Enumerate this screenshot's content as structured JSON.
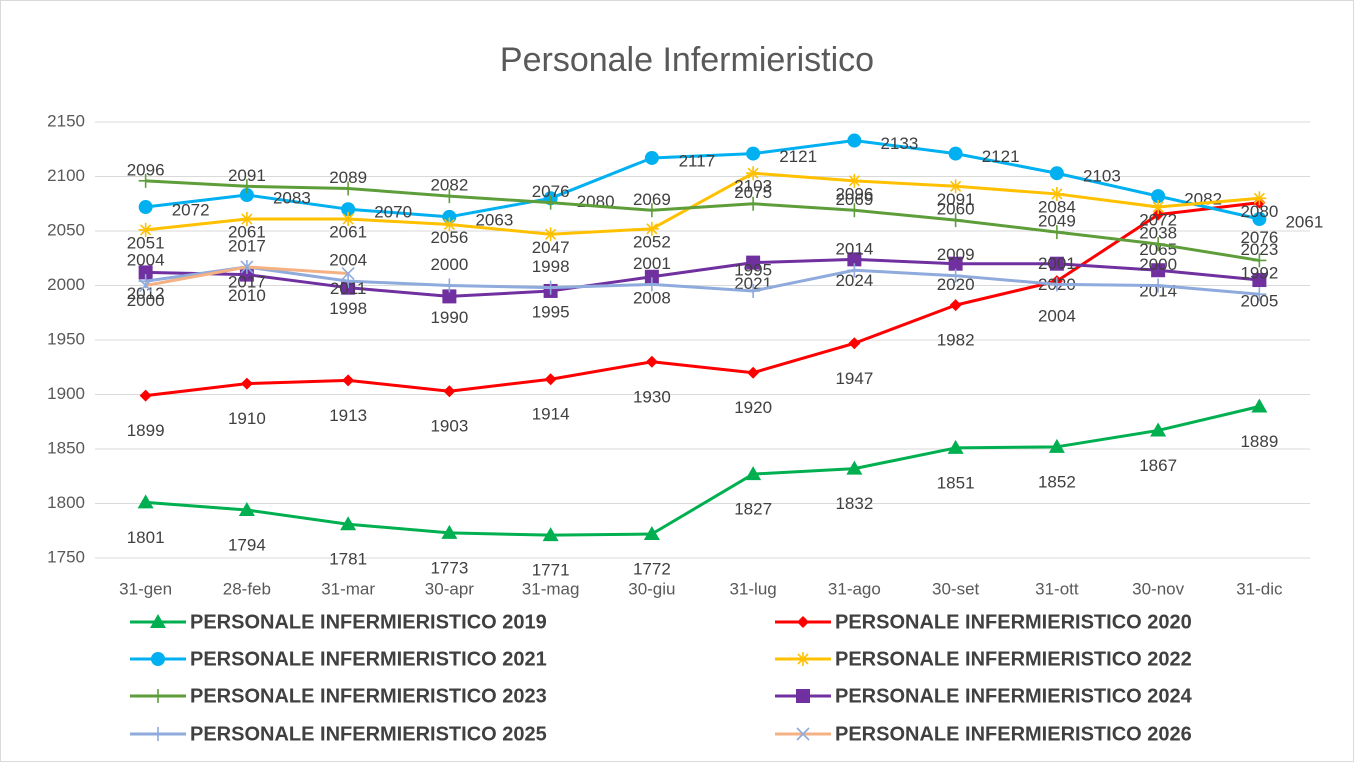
{
  "chart_data": {
    "type": "line",
    "title": "Personale Infermieristico",
    "categories": [
      "31-gen",
      "28-feb",
      "31-mar",
      "30-apr",
      "31-mag",
      "30-giu",
      "31-lug",
      "31-ago",
      "30-set",
      "31-ott",
      "30-nov",
      "31-dic"
    ],
    "ylim": [
      1750,
      2150
    ],
    "yticks": [
      1750,
      1800,
      1850,
      1900,
      1950,
      2000,
      2050,
      2100,
      2150
    ],
    "grid": true,
    "legend": "bottom",
    "data_labels": true,
    "series": [
      {
        "name": "PERSONALE INFERMIERISTICO 2019",
        "color": "#00b050",
        "marker": "triangle",
        "values": [
          1801,
          1794,
          1781,
          1773,
          1771,
          1772,
          1827,
          1832,
          1851,
          1852,
          1867,
          1889
        ]
      },
      {
        "name": "PERSONALE INFERMIERISTICO 2020",
        "color": "#ff0000",
        "marker": "diamond",
        "values": [
          1899,
          1910,
          1913,
          1903,
          1914,
          1930,
          1920,
          1947,
          1982,
          2004,
          2065,
          2076
        ]
      },
      {
        "name": "PERSONALE INFERMIERISTICO 2021",
        "color": "#00b0f0",
        "marker": "circle",
        "values": [
          2072,
          2083,
          2070,
          2063,
          2080,
          2117,
          2121,
          2133,
          2121,
          2103,
          2082,
          2061
        ]
      },
      {
        "name": "PERSONALE INFERMIERISTICO 2022",
        "color": "#ffc000",
        "marker": "star",
        "values": [
          2051,
          2061,
          2061,
          2056,
          2047,
          2052,
          2103,
          2096,
          2091,
          2084,
          2072,
          2080
        ]
      },
      {
        "name": "PERSONALE INFERMIERISTICO 2023",
        "color": "#5e9e3a",
        "marker": "plus",
        "values": [
          2096,
          2091,
          2089,
          2082,
          2076,
          2069,
          2075,
          2069,
          2060,
          2049,
          2038,
          2023
        ]
      },
      {
        "name": "PERSONALE INFERMIERISTICO 2024",
        "color": "#7030a0",
        "marker": "square",
        "values": [
          2012,
          2010,
          1998,
          1990,
          1995,
          2008,
          2021,
          2024,
          2020,
          2020,
          2014,
          2005
        ]
      },
      {
        "name": "PERSONALE INFERMIERISTICO 2025",
        "color": "#8faadc",
        "marker": "plus",
        "values": [
          2004,
          2017,
          2004,
          2000,
          1998,
          2001,
          1995,
          2014,
          2009,
          2001,
          2000,
          1992
        ]
      },
      {
        "name": "PERSONALE INFERMIERISTICO 2026",
        "color": "#f4b183",
        "marker": "x",
        "values": [
          2000,
          2017,
          2011,
          null,
          null,
          null,
          null,
          null,
          null,
          null,
          null,
          null
        ]
      }
    ]
  }
}
